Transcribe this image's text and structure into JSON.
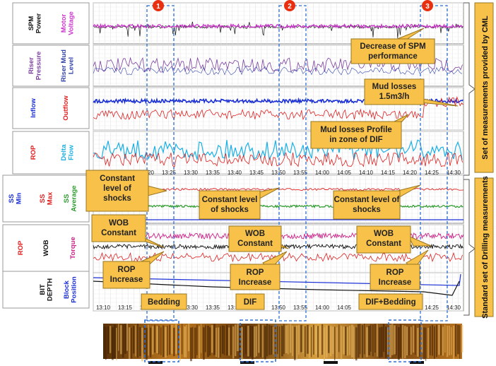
{
  "panel_labels": {
    "spm_power": "SPM Power",
    "motor_voltage": "Motor Voltage",
    "riser_pressure": "Riser Pressure",
    "riser_mud_level": "Riser Mud Level",
    "inflow": "Inflow",
    "outflow": "Outflow",
    "rop_top": "ROP",
    "delta_flow": "Delta Flow",
    "ss_min": "SS Min",
    "ss_max": "SS Max",
    "ss_average": "SS Average",
    "rop_bottom": "ROP",
    "wob": "WOB",
    "torque": "Torque",
    "bit_depth": "BIT DEPTH",
    "block_position": "Block Position"
  },
  "side_labels": {
    "top": "Set of measurements provided by CML",
    "bottom": "Standard set of Drilling measurements"
  },
  "markers": [
    "1",
    "2",
    "3"
  ],
  "callouts": {
    "spm_decrease": "Decrease of SPM performance",
    "mud_losses": "Mud losses 1.5m3/h",
    "mud_profile": "Mud losses Profile in zone of DIF",
    "constant_1": "Constant level of shocks",
    "constant_2": "Constant level of shocks",
    "constant_3": "Constant level of shocks",
    "wob_1": "WOB Constant",
    "wob_2": "WOB Constant",
    "wob_3": "WOB Constant",
    "rop_1": "ROP Increase",
    "rop_2": "ROP Increase",
    "rop_3": "ROP Increase",
    "bedding": "Bedding",
    "dif": "DIF",
    "dif_bedding": "DIF+Bedding"
  },
  "chart_data": {
    "type": "line",
    "x_ticks": [
      "13:10",
      "13:15",
      "13:20",
      "13:25",
      "13:30",
      "13:35",
      "13:40",
      "13:45",
      "13:50",
      "13:55",
      "14:00",
      "14:05",
      "14:10",
      "14:15",
      "14:20",
      "14:25",
      "14:30"
    ],
    "series_colors": {
      "power": "#111111",
      "motor_voltage": "#cc33cc",
      "riser_pressure": "#7b3fa0",
      "riser_mud": "#3344aa",
      "inflow": "#1a2fd6",
      "outflow": "#e02020",
      "rop": "#e02020",
      "delta_flow": "#19b0e6",
      "ss_max": "#e02020",
      "ss_avg": "#2a9a2a",
      "ss_min": "#1a2fd6",
      "wob": "#111111",
      "torque": "#cc2288",
      "bit_depth": "#111111",
      "block_position": "#1a2fd6"
    },
    "accent_colors": {
      "marker": "#e83010",
      "callout_fill": "#f7c14a",
      "callout_border": "#9a7620",
      "zone": "#2f6fd6"
    }
  }
}
